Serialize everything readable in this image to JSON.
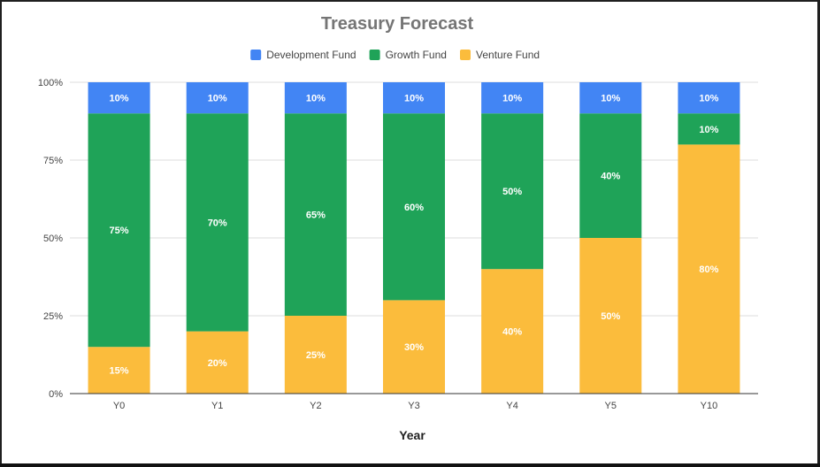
{
  "chart_data": {
    "type": "bar",
    "stacked": true,
    "title": "Treasury Forecast",
    "xlabel": "Year",
    "ylabel": "",
    "categories": [
      "Y0",
      "Y1",
      "Y2",
      "Y3",
      "Y4",
      "Y5",
      "Y10"
    ],
    "ylim": [
      0,
      100
    ],
    "yticks": [
      "0%",
      "25%",
      "50%",
      "75%",
      "100%"
    ],
    "grid": true,
    "legend_position": "top",
    "series": [
      {
        "name": "Development Fund",
        "color": "#4285f4",
        "values": [
          10,
          10,
          10,
          10,
          10,
          10,
          10
        ]
      },
      {
        "name": "Growth Fund",
        "color": "#1fa358",
        "values": [
          75,
          70,
          65,
          60,
          50,
          40,
          10
        ]
      },
      {
        "name": "Venture Fund",
        "color": "#fbbc3c",
        "values": [
          15,
          20,
          25,
          30,
          40,
          50,
          80
        ]
      }
    ],
    "stack_order_bottom_to_top": [
      "Venture Fund",
      "Growth Fund",
      "Development Fund"
    ],
    "data_label_suffix": "%"
  }
}
